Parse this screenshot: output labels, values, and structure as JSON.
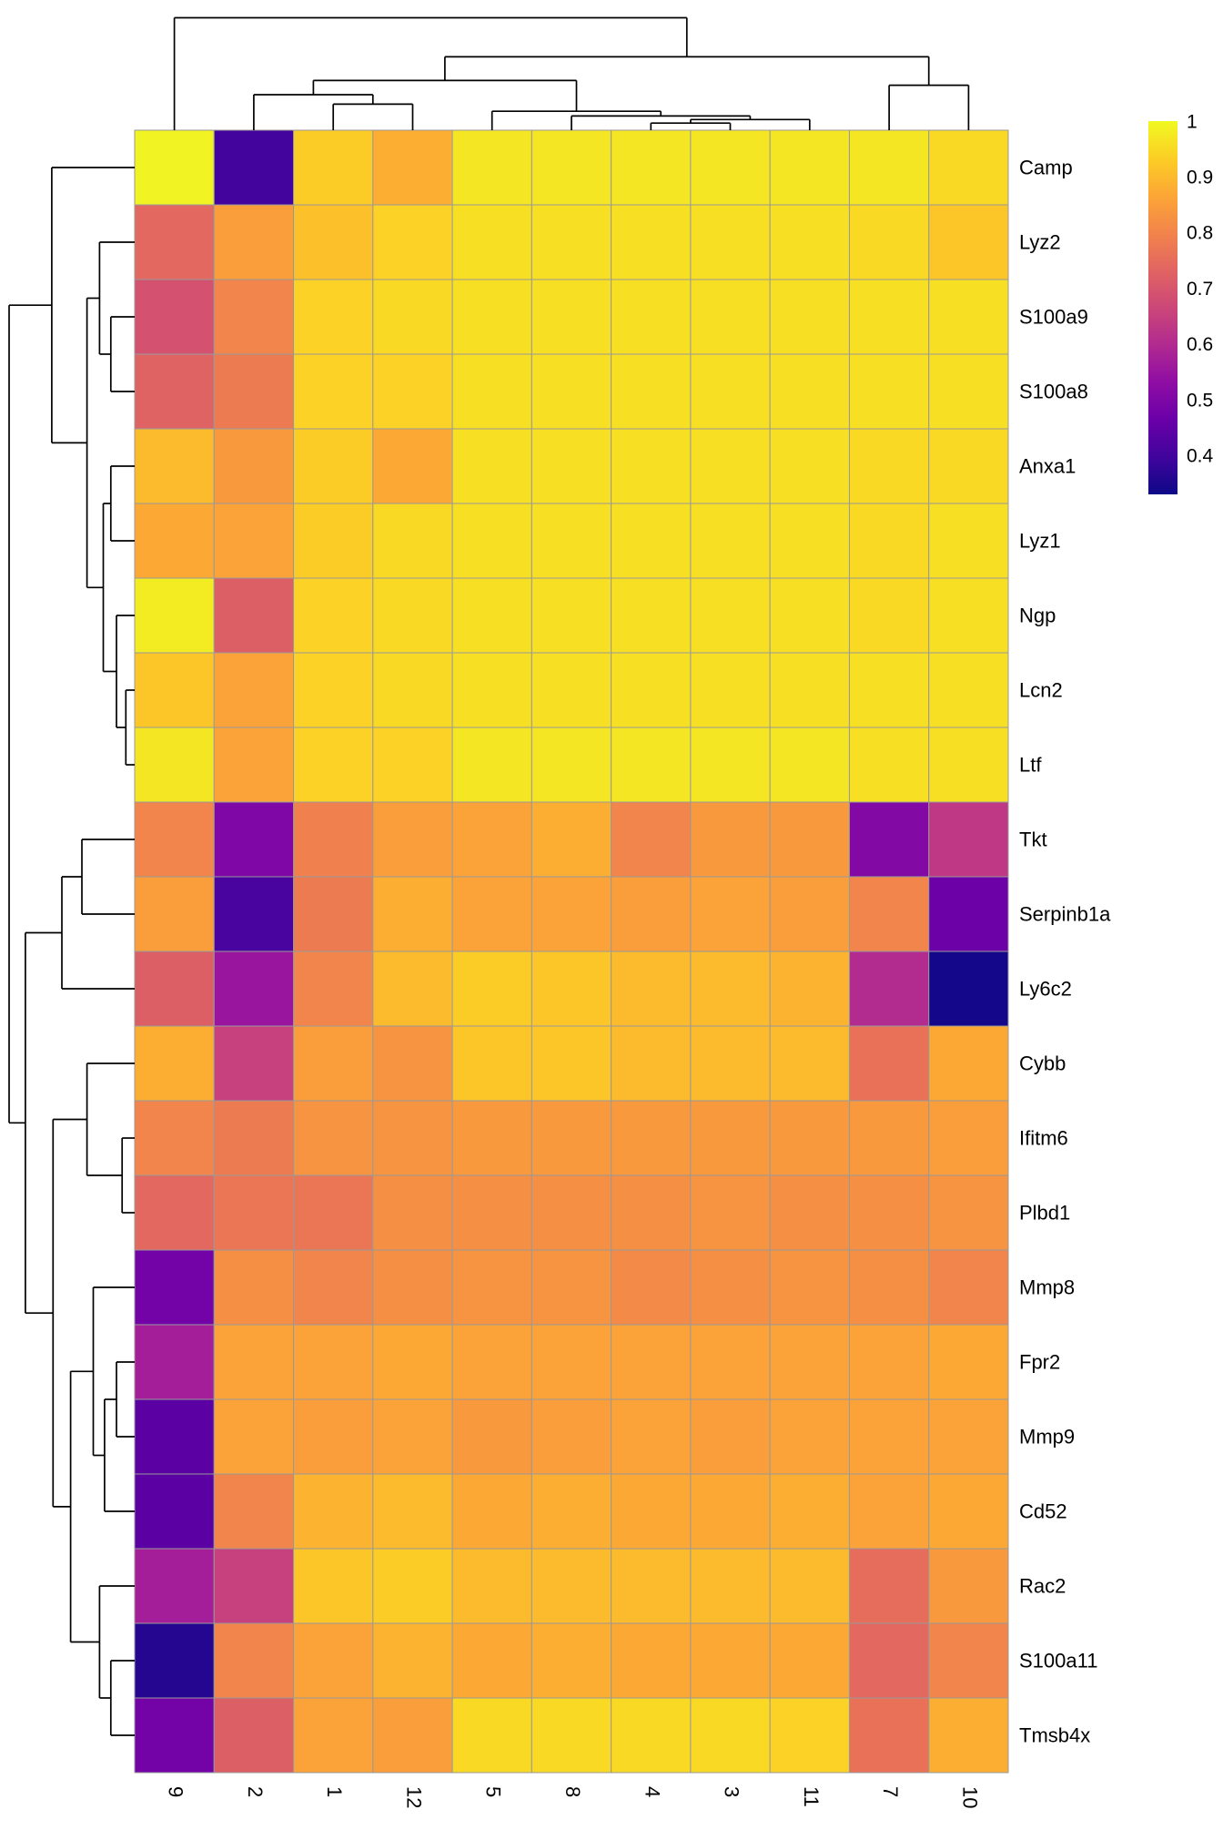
{
  "chart_data": {
    "type": "heatmap",
    "title": "",
    "columns": [
      "9",
      "2",
      "1",
      "12",
      "5",
      "8",
      "4",
      "3",
      "11",
      "7",
      "10"
    ],
    "rows": [
      "Camp",
      "Lyz2",
      "S100a9",
      "S100a8",
      "Anxa1",
      "Lyz1",
      "Ngp",
      "Lcn2",
      "Ltf",
      "Tkt",
      "Serpinb1a",
      "Ly6c2",
      "Cybb",
      "Ifitm6",
      "Plbd1",
      "Mmp8",
      "Fpr2",
      "Mmp9",
      "Cd52",
      "Rac2",
      "S100a11",
      "Tmsb4x"
    ],
    "values": [
      [
        0.99,
        0.4,
        0.93,
        0.88,
        0.97,
        0.97,
        0.97,
        0.97,
        0.97,
        0.97,
        0.95
      ],
      [
        0.74,
        0.85,
        0.91,
        0.94,
        0.96,
        0.96,
        0.96,
        0.96,
        0.96,
        0.95,
        0.92
      ],
      [
        0.69,
        0.8,
        0.94,
        0.95,
        0.96,
        0.96,
        0.96,
        0.96,
        0.96,
        0.96,
        0.96
      ],
      [
        0.73,
        0.78,
        0.94,
        0.94,
        0.96,
        0.96,
        0.96,
        0.96,
        0.96,
        0.96,
        0.96
      ],
      [
        0.9,
        0.84,
        0.93,
        0.87,
        0.96,
        0.96,
        0.96,
        0.96,
        0.96,
        0.95,
        0.95
      ],
      [
        0.87,
        0.86,
        0.93,
        0.95,
        0.96,
        0.96,
        0.96,
        0.96,
        0.96,
        0.95,
        0.96
      ],
      [
        0.98,
        0.72,
        0.94,
        0.95,
        0.96,
        0.96,
        0.96,
        0.96,
        0.96,
        0.95,
        0.96
      ],
      [
        0.92,
        0.86,
        0.94,
        0.95,
        0.96,
        0.96,
        0.96,
        0.96,
        0.96,
        0.96,
        0.96
      ],
      [
        0.97,
        0.86,
        0.94,
        0.94,
        0.97,
        0.97,
        0.97,
        0.97,
        0.97,
        0.96,
        0.96
      ],
      [
        0.8,
        0.5,
        0.79,
        0.85,
        0.86,
        0.88,
        0.8,
        0.84,
        0.84,
        0.51,
        0.63
      ],
      [
        0.85,
        0.41,
        0.78,
        0.88,
        0.86,
        0.86,
        0.85,
        0.86,
        0.85,
        0.8,
        0.47
      ],
      [
        0.72,
        0.55,
        0.8,
        0.9,
        0.93,
        0.92,
        0.9,
        0.9,
        0.89,
        0.6,
        0.34
      ],
      [
        0.88,
        0.65,
        0.85,
        0.83,
        0.92,
        0.92,
        0.9,
        0.9,
        0.9,
        0.76,
        0.87
      ],
      [
        0.8,
        0.78,
        0.83,
        0.83,
        0.84,
        0.84,
        0.84,
        0.84,
        0.84,
        0.84,
        0.85
      ],
      [
        0.74,
        0.77,
        0.77,
        0.82,
        0.82,
        0.82,
        0.82,
        0.83,
        0.82,
        0.82,
        0.83
      ],
      [
        0.48,
        0.82,
        0.8,
        0.82,
        0.83,
        0.83,
        0.81,
        0.82,
        0.83,
        0.82,
        0.8
      ],
      [
        0.57,
        0.86,
        0.86,
        0.87,
        0.86,
        0.86,
        0.86,
        0.86,
        0.86,
        0.86,
        0.87
      ],
      [
        0.44,
        0.86,
        0.85,
        0.86,
        0.84,
        0.85,
        0.86,
        0.85,
        0.86,
        0.86,
        0.86
      ],
      [
        0.44,
        0.8,
        0.89,
        0.9,
        0.87,
        0.88,
        0.87,
        0.87,
        0.88,
        0.86,
        0.87
      ],
      [
        0.57,
        0.65,
        0.92,
        0.93,
        0.9,
        0.9,
        0.9,
        0.9,
        0.9,
        0.75,
        0.84
      ],
      [
        0.36,
        0.8,
        0.86,
        0.89,
        0.87,
        0.88,
        0.87,
        0.87,
        0.87,
        0.74,
        0.8
      ],
      [
        0.48,
        0.72,
        0.86,
        0.85,
        0.95,
        0.95,
        0.95,
        0.95,
        0.94,
        0.76,
        0.88
      ]
    ],
    "vmin": 0.33,
    "vmax": 1.0,
    "colormap": "plasma",
    "colormap_stops": [
      "#0d0887",
      "#41049d",
      "#6a00a8",
      "#8f0da4",
      "#b12a90",
      "#cc4778",
      "#e16462",
      "#f2844b",
      "#fca636",
      "#fcce25",
      "#f0f921"
    ],
    "cell_border_color": "#999999",
    "dendrogram_color": "#000000",
    "legend": {
      "position": "right",
      "tick_labels": [
        "1",
        "0.9",
        "0.8",
        "0.7",
        "0.6",
        "0.5",
        "0.4"
      ],
      "tick_values": [
        1,
        0.9,
        0.8,
        0.7,
        0.6,
        0.5,
        0.4
      ]
    },
    "col_dendrogram": {
      "h": 0.95,
      "c": [
        "9",
        {
          "h": 0.62,
          "c": [
            {
              "h": 0.42,
              "c": [
                {
                  "h": 0.3,
                  "c": [
                    "2",
                    {
                      "h": 0.22,
                      "c": [
                        "1",
                        "12"
                      ]
                    }
                  ]
                },
                {
                  "h": 0.16,
                  "c": [
                    "5",
                    {
                      "h": 0.12,
                      "c": [
                        "8",
                        {
                          "h": 0.09,
                          "c": [
                            {
                              "h": 0.06,
                              "c": [
                                "4",
                                "3"
                              ]
                            },
                            "11"
                          ]
                        }
                      ]
                    }
                  ]
                }
              ]
            },
            {
              "h": 0.38,
              "c": [
                "7",
                "10"
              ]
            }
          ]
        }
      ]
    },
    "row_dendrogram": {
      "h": 1.0,
      "c": [
        {
          "h": 0.66,
          "c": [
            "Camp",
            {
              "h": 0.38,
              "c": [
                {
                  "h": 0.28,
                  "c": [
                    "Lyz2",
                    {
                      "h": 0.19,
                      "c": [
                        "S100a9",
                        "S100a8"
                      ]
                    }
                  ]
                },
                {
                  "h": 0.25,
                  "c": [
                    {
                      "h": 0.19,
                      "c": [
                        "Anxa1",
                        "Lyz1"
                      ]
                    },
                    {
                      "h": 0.145,
                      "c": [
                        "Ngp",
                        {
                          "h": 0.07,
                          "c": [
                            "Lcn2",
                            "Ltf"
                          ]
                        }
                      ]
                    }
                  ]
                }
              ]
            }
          ]
        },
        {
          "h": 0.87,
          "c": [
            {
              "h": 0.58,
              "c": [
                {
                  "h": 0.42,
                  "c": [
                    "Tkt",
                    "Serpinb1a"
                  ]
                },
                "Ly6c2"
              ]
            },
            {
              "h": 0.65,
              "c": [
                {
                  "h": 0.38,
                  "c": [
                    "Cybb",
                    {
                      "h": 0.1,
                      "c": [
                        "Ifitm6",
                        "Plbd1"
                      ]
                    }
                  ]
                },
                {
                  "h": 0.51,
                  "c": [
                    {
                      "h": 0.33,
                      "c": [
                        "Mmp8",
                        {
                          "h": 0.24,
                          "c": [
                            {
                              "h": 0.145,
                              "c": [
                                "Fpr2",
                                "Mmp9"
                              ]
                            },
                            "Cd52"
                          ]
                        }
                      ]
                    },
                    {
                      "h": 0.28,
                      "c": [
                        "Rac2",
                        {
                          "h": 0.19,
                          "c": [
                            "S100a11",
                            "Tmsb4x"
                          ]
                        }
                      ]
                    }
                  ]
                }
              ]
            }
          ]
        }
      ]
    }
  }
}
